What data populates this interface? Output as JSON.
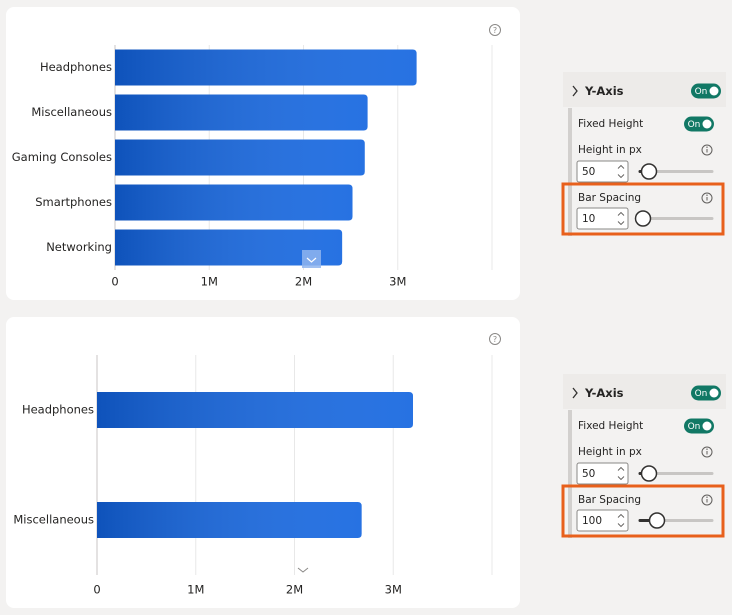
{
  "chart_data": [
    {
      "type": "bar",
      "orientation": "horizontal",
      "categories": [
        "Headphones",
        "Miscellaneous",
        "Gaming Consoles",
        "Smartphones",
        "Networking"
      ],
      "values": [
        3200000,
        2680000,
        2650000,
        2520000,
        2410000
      ],
      "color": "#1466e0",
      "xlim": [
        0,
        4000000
      ],
      "xticks": [
        0,
        {
          "value": 1000000,
          "label": "1M"
        },
        {
          "value": 2000000,
          "label": "2M"
        },
        {
          "value": 3000000,
          "label": "3M"
        }
      ],
      "grid": true
    },
    {
      "type": "bar",
      "orientation": "horizontal",
      "categories": [
        "Headphones",
        "Miscellaneous"
      ],
      "values": [
        3200000,
        2680000
      ],
      "color": "#1466e0",
      "xlim": [
        0,
        4000000
      ],
      "xticks": [
        0,
        {
          "value": 1000000,
          "label": "1M"
        },
        {
          "value": 2000000,
          "label": "2M"
        },
        {
          "value": 3000000,
          "label": "3M"
        }
      ],
      "grid": true
    }
  ],
  "panels": [
    {
      "title": "Y-Axis",
      "toggle": "On",
      "fixed_height": {
        "label": "Fixed Height",
        "toggle": "On"
      },
      "height": {
        "label": "Height in px",
        "value": 50
      },
      "spacing": {
        "label": "Bar Spacing",
        "value": 10
      }
    },
    {
      "title": "Y-Axis",
      "toggle": "On",
      "fixed_height": {
        "label": "Fixed Height",
        "toggle": "On"
      },
      "height": {
        "label": "Height in px",
        "value": 50
      },
      "spacing": {
        "label": "Bar Spacing",
        "value": 100
      }
    }
  ]
}
